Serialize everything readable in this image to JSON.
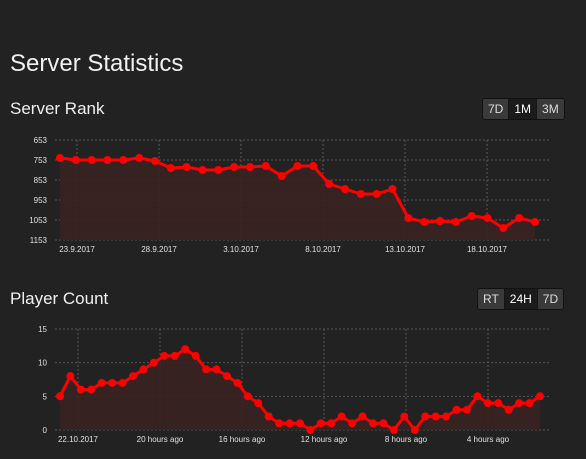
{
  "page": {
    "title": "Server Statistics"
  },
  "rank_section": {
    "title": "Server Rank",
    "buttons": [
      {
        "label": "7D",
        "active": false
      },
      {
        "label": "1M",
        "active": true
      },
      {
        "label": "3M",
        "active": false
      }
    ]
  },
  "players_section": {
    "title": "Player Count",
    "buttons": [
      {
        "label": "RT",
        "active": false
      },
      {
        "label": "24H",
        "active": true
      },
      {
        "label": "7D",
        "active": false
      }
    ]
  },
  "colors": {
    "line": "#ff0000",
    "fill": "#3a2222",
    "grid": "#555555",
    "background": "#222222"
  },
  "chart_data": [
    {
      "type": "area",
      "title": "",
      "y_reversed": true,
      "yticks": [
        653,
        753,
        853,
        953,
        1053,
        1153
      ],
      "ylim": [
        653,
        1153
      ],
      "xticks": [
        "23.9.2017",
        "28.9.2017",
        "3.10.2017",
        "8.10.2017",
        "13.10.2017",
        "18.10.2017"
      ],
      "grid": true,
      "values": [
        743,
        753,
        753,
        753,
        753,
        743,
        758,
        793,
        788,
        803,
        803,
        788,
        788,
        783,
        833,
        783,
        783,
        873,
        898,
        923,
        923,
        898,
        1043,
        1063,
        1058,
        1063,
        1033,
        1043,
        1093,
        1043,
        1063
      ]
    },
    {
      "type": "area",
      "title": "",
      "yticks": [
        15,
        10,
        5,
        0
      ],
      "ylim": [
        0,
        15
      ],
      "xticks": [
        "22.10.2017",
        "20 hours ago",
        "16 hours ago",
        "12 hours ago",
        "8 hours ago",
        "4 hours ago"
      ],
      "grid": true,
      "values": [
        5,
        8,
        6,
        6,
        7,
        7,
        7,
        8,
        9,
        10,
        11,
        11,
        12,
        11,
        9,
        9,
        8,
        7,
        5,
        4,
        2,
        1,
        1,
        1,
        0,
        1,
        1,
        2,
        1,
        2,
        1,
        1,
        0,
        2,
        0,
        2,
        2,
        2,
        3,
        3,
        5,
        4,
        4,
        3,
        4,
        4,
        5
      ]
    }
  ]
}
